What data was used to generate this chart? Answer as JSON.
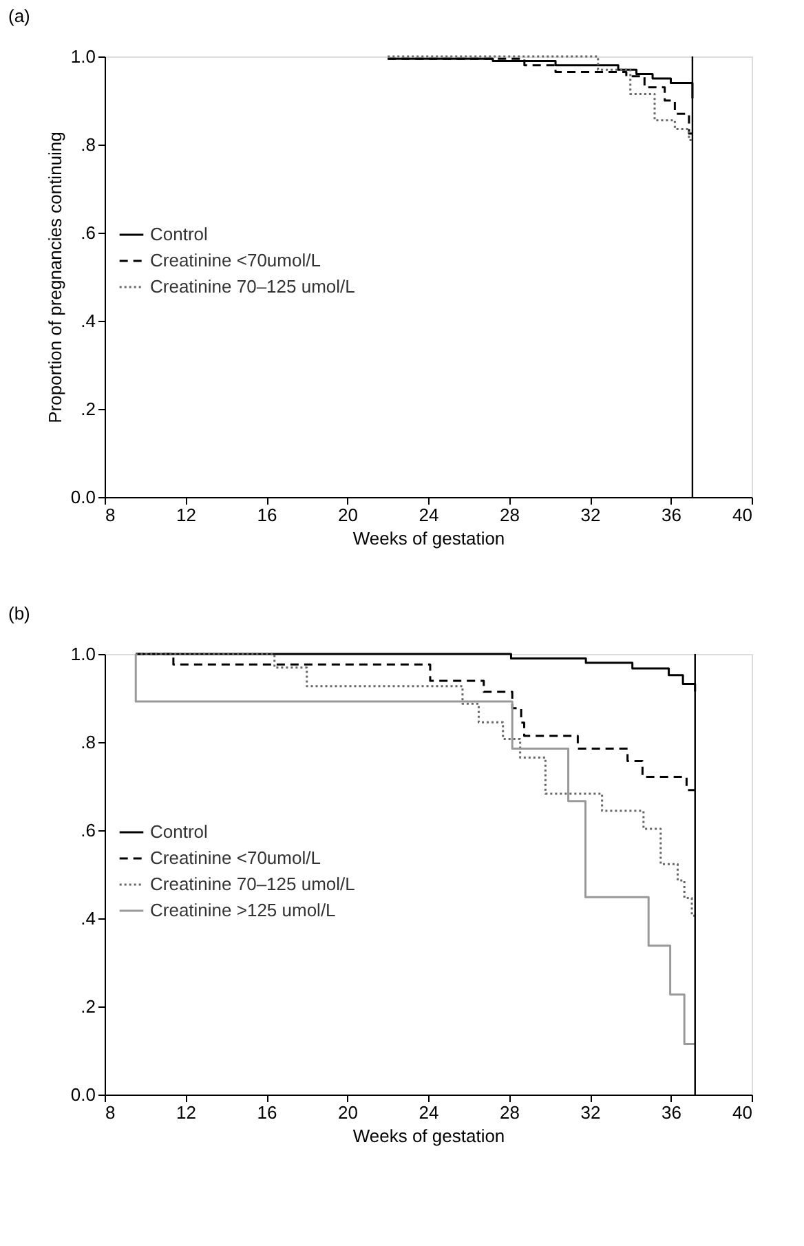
{
  "chart_data": [
    {
      "type": "step",
      "title": "(a)",
      "xlabel": "Weeks of gestation",
      "ylabel": "Proportion of pregnancies continuing",
      "xlim": [
        8,
        40
      ],
      "xticks": [
        8,
        12,
        16,
        20,
        24,
        28,
        32,
        36,
        40
      ],
      "ylim": [
        0,
        1
      ],
      "yticks": [
        {
          "value": 0,
          "label": "0.0"
        },
        {
          "value": 0.2,
          "label": ".2"
        },
        {
          "value": 0.4,
          "label": ".4"
        },
        {
          "value": 0.6,
          "label": ".6"
        },
        {
          "value": 0.8,
          "label": ".8"
        },
        {
          "value": 1,
          "label": "1.0"
        }
      ],
      "grid": false,
      "legend": "left",
      "marker": "none",
      "ref_lines": [
        {
          "axis": "x",
          "value": 37.07,
          "color": "#000000"
        }
      ],
      "series": [
        {
          "name": "Control",
          "color": "#000000",
          "line_style": "solid",
          "x": [
            22.0,
            27.2,
            30.3,
            33.4,
            34.3,
            35.1,
            36.0,
            37.07
          ],
          "values": [
            0.995,
            0.99,
            0.98,
            0.97,
            0.96,
            0.95,
            0.94,
            0.905
          ]
        },
        {
          "name": "Creatinine <70umol/L",
          "color": "#000000",
          "line_style": "dashed",
          "x": [
            22.0,
            28.76,
            30.3,
            33.8,
            34.7,
            35.7,
            36.2,
            36.9,
            37.07
          ],
          "values": [
            0.995,
            0.98,
            0.965,
            0.955,
            0.93,
            0.9,
            0.87,
            0.825,
            0.825
          ]
        },
        {
          "name": "Creatinine 70–125 umol/L",
          "color": "#666666",
          "line_style": "dotted",
          "x": [
            22.0,
            32.4,
            34.0,
            35.2,
            36.2,
            36.9,
            37.07
          ],
          "values": [
            1.0,
            0.97,
            0.915,
            0.855,
            0.835,
            0.81,
            0.81
          ]
        }
      ]
    },
    {
      "type": "step",
      "title": "(b)",
      "xlabel": "Weeks of gestation",
      "xlim": [
        8,
        40
      ],
      "xticks": [
        8,
        12,
        16,
        20,
        24,
        28,
        32,
        36,
        40
      ],
      "ylim": [
        0,
        1
      ],
      "yticks": [
        {
          "value": 0,
          "label": "0.0"
        },
        {
          "value": 0.2,
          "label": ".2"
        },
        {
          "value": 0.4,
          "label": ".4"
        },
        {
          "value": 0.6,
          "label": ".6"
        },
        {
          "value": 0.8,
          "label": ".8"
        },
        {
          "value": 1,
          "label": "1.0"
        }
      ],
      "grid": false,
      "legend": "left",
      "marker": "none",
      "ref_lines": [
        {
          "axis": "x",
          "value": 37.2,
          "color": "#000000"
        }
      ],
      "series": [
        {
          "name": "Control",
          "color": "#000000",
          "line_style": "solid",
          "x": [
            9.54,
            24.4,
            28.1,
            31.8,
            34.1,
            35.9,
            36.6,
            37.2
          ],
          "values": [
            1.0,
            1.0,
            0.99,
            0.98,
            0.967,
            0.952,
            0.932,
            0.915
          ]
        },
        {
          "name": "Creatinine <70umol/L",
          "color": "#000000",
          "line_style": "dashed",
          "x": [
            9.54,
            11.4,
            24.1,
            26.75,
            28.16,
            28.6,
            28.75,
            31.4,
            33.86,
            34.6,
            36.78,
            37.2
          ],
          "values": [
            1.0,
            0.976,
            0.939,
            0.914,
            0.877,
            0.844,
            0.814,
            0.785,
            0.757,
            0.721,
            0.691,
            0.691
          ]
        },
        {
          "name": "Creatinine 70–125 umol/L",
          "color": "#666666",
          "line_style": "dotted",
          "x": [
            9.54,
            16.4,
            18.0,
            25.7,
            26.5,
            27.7,
            28.55,
            29.8,
            32.6,
            34.65,
            35.5,
            36.34,
            36.67,
            37.04,
            37.2
          ],
          "values": [
            1.0,
            0.969,
            0.927,
            0.887,
            0.845,
            0.807,
            0.765,
            0.683,
            0.644,
            0.603,
            0.523,
            0.486,
            0.446,
            0.406,
            0.406
          ]
        },
        {
          "name": "Creatinine >125 umol/L",
          "color": "#999999",
          "line_style": "solid",
          "x": [
            9.54,
            9.54,
            28.16,
            30.93,
            31.78,
            34.9,
            35.97,
            36.67,
            37.2
          ],
          "values": [
            1.0,
            0.892,
            0.785,
            0.666,
            0.448,
            0.338,
            0.227,
            0.115,
            0.115
          ]
        }
      ]
    }
  ]
}
